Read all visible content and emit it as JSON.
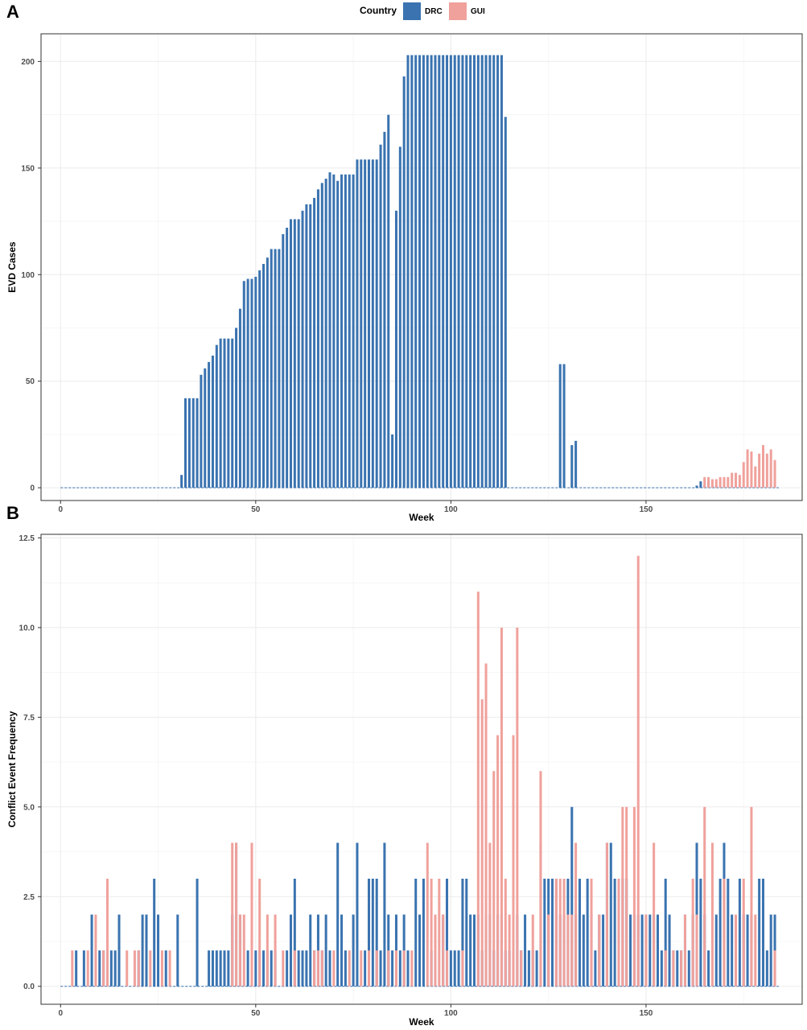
{
  "legend": {
    "title": "Country",
    "items": [
      {
        "label": "DRC",
        "color": "#3A73B0"
      },
      {
        "label": "GUI",
        "color": "#F0A19C"
      }
    ]
  },
  "chart_data": [
    {
      "panel_label": "A",
      "type": "bar",
      "xlabel": "Week",
      "ylabel": "EVD Cases",
      "xlim": [
        -5,
        190
      ],
      "ylim": [
        -6,
        213
      ],
      "x_ticks": [
        0,
        50,
        100,
        150
      ],
      "y_ticks": [
        0,
        50,
        100,
        150,
        200
      ],
      "y_tick_labels": [
        "0",
        "50",
        "100",
        "150",
        "200"
      ],
      "grid": true,
      "legend_position": "top",
      "series": [
        {
          "name": "DRC",
          "color": "#3A73B0",
          "weeks": [
            31,
            32,
            33,
            34,
            35,
            36,
            37,
            38,
            39,
            40,
            41,
            42,
            43,
            44,
            45,
            46,
            47,
            48,
            49,
            50,
            51,
            52,
            53,
            54,
            55,
            56,
            57,
            58,
            59,
            60,
            61,
            62,
            63,
            64,
            65,
            66,
            67,
            68,
            69,
            70,
            71,
            72,
            73,
            74,
            75,
            76,
            77,
            78,
            79,
            80,
            81,
            82,
            83,
            84,
            85,
            86,
            87,
            88,
            89,
            90,
            91,
            92,
            93,
            94,
            95,
            96,
            97,
            98,
            99,
            100,
            101,
            102,
            103,
            104,
            105,
            106,
            107,
            108,
            109,
            110,
            111,
            112,
            113,
            114,
            128,
            129,
            131,
            132,
            163,
            164,
            165,
            166,
            167,
            168
          ],
          "values": [
            6,
            42,
            42,
            42,
            42,
            53,
            56,
            59,
            62,
            67,
            70,
            70,
            70,
            70,
            75,
            84,
            97,
            98,
            98,
            99,
            102,
            105,
            108,
            112,
            112,
            112,
            119,
            122,
            126,
            126,
            126,
            130,
            133,
            133,
            136,
            140,
            143,
            145,
            148,
            147,
            144,
            147,
            147,
            147,
            147,
            154,
            154,
            154,
            154,
            154,
            154,
            161,
            167,
            175,
            25,
            130,
            160,
            193,
            203,
            203,
            203,
            203,
            203,
            203,
            203,
            203,
            203,
            203,
            203,
            203,
            203,
            203,
            203,
            203,
            203,
            203,
            203,
            203,
            203,
            203,
            203,
            203,
            203,
            174,
            58,
            58,
            20,
            22,
            1,
            3,
            1,
            3,
            1,
            1
          ]
        },
        {
          "name": "GUI",
          "color": "#F0A19C",
          "weeks": [
            165,
            166,
            167,
            168,
            169,
            170,
            171,
            172,
            173,
            174,
            175,
            176,
            177,
            178,
            179,
            180,
            181,
            182,
            183
          ],
          "values": [
            5,
            5,
            4,
            4,
            5,
            5,
            5,
            7,
            7,
            6,
            12,
            18,
            17,
            10,
            16,
            20,
            16,
            18,
            13
          ]
        }
      ]
    },
    {
      "panel_label": "B",
      "type": "bar",
      "xlabel": "Week",
      "ylabel": "Conflict Event Frequency",
      "xlim": [
        -5,
        190
      ],
      "ylim": [
        -0.5,
        12.6
      ],
      "x_ticks": [
        0,
        50,
        100,
        150
      ],
      "y_ticks": [
        0,
        2.5,
        5,
        7.5,
        10,
        12.5
      ],
      "y_tick_labels": [
        "0.0",
        "2.5",
        "5.0",
        "7.5",
        "10.0",
        "12.5"
      ],
      "grid": true,
      "series": [
        {
          "name": "DRC",
          "color": "#3A73B0",
          "weeks": [
            4,
            6,
            8,
            10,
            11,
            12,
            13,
            14,
            15,
            20,
            21,
            22,
            24,
            25,
            27,
            30,
            35,
            38,
            39,
            40,
            41,
            42,
            43,
            44,
            45,
            46,
            48,
            50,
            51,
            52,
            53,
            54,
            55,
            58,
            59,
            60,
            61,
            62,
            63,
            64,
            65,
            66,
            67,
            68,
            69,
            71,
            72,
            73,
            75,
            76,
            78,
            79,
            80,
            81,
            82,
            83,
            84,
            85,
            86,
            87,
            88,
            89,
            91,
            92,
            93,
            95,
            96,
            98,
            99,
            100,
            101,
            102,
            103,
            104,
            105,
            106,
            107,
            108,
            109,
            110,
            111,
            112,
            113,
            114,
            115,
            116,
            117,
            118,
            119,
            120,
            121,
            122,
            123,
            124,
            125,
            126,
            127,
            128,
            129,
            130,
            131,
            132,
            133,
            134,
            135,
            136,
            137,
            138,
            139,
            140,
            141,
            142,
            143,
            144,
            145,
            146,
            147,
            148,
            149,
            150,
            151,
            152,
            153,
            154,
            155,
            156,
            157,
            158,
            159,
            160,
            161,
            162,
            163,
            164,
            165,
            166,
            168,
            169,
            170,
            171,
            172,
            173,
            174,
            175,
            176,
            177,
            179,
            180,
            181,
            182,
            183
          ],
          "values": [
            1,
            1,
            2,
            1,
            1,
            1,
            1,
            1,
            2,
            1,
            2,
            2,
            3,
            2,
            1,
            2,
            3,
            1,
            1,
            1,
            1,
            1,
            1,
            2,
            4,
            2,
            1,
            1,
            1,
            1,
            1,
            1,
            1,
            1,
            2,
            3,
            1,
            1,
            1,
            2,
            1,
            2,
            1,
            2,
            1,
            4,
            2,
            1,
            2,
            4,
            1,
            3,
            3,
            3,
            1,
            4,
            2,
            1,
            2,
            1,
            2,
            1,
            3,
            2,
            3,
            1,
            1,
            2,
            3,
            1,
            1,
            1,
            3,
            3,
            2,
            2,
            2,
            1,
            2,
            2,
            1,
            2,
            2,
            1,
            1,
            1,
            2,
            1,
            2,
            1,
            1,
            1,
            4,
            3,
            3,
            3,
            3,
            2,
            2,
            3,
            5,
            2,
            3,
            2,
            3,
            2,
            1,
            2,
            2,
            4,
            4,
            3,
            2,
            3,
            3,
            2,
            2,
            2,
            2,
            2,
            2,
            2,
            2,
            1,
            3,
            2,
            1,
            1,
            1,
            2,
            1,
            2,
            4,
            3,
            2,
            1,
            2,
            3,
            4,
            3,
            2,
            1,
            3,
            2,
            2,
            2,
            3,
            3,
            1,
            2,
            2
          ]
        },
        {
          "name": "GUI",
          "color": "#F0A19C",
          "weeks": [
            3,
            7,
            9,
            11,
            12,
            17,
            19,
            20,
            23,
            26,
            28,
            44,
            45,
            46,
            47,
            49,
            51,
            53,
            55,
            57,
            60,
            65,
            66,
            67,
            70,
            74,
            77,
            79,
            81,
            84,
            86,
            88,
            90,
            94,
            95,
            96,
            97,
            98,
            99,
            103,
            107,
            108,
            109,
            110,
            111,
            112,
            113,
            114,
            115,
            116,
            117,
            118,
            121,
            123,
            125,
            127,
            128,
            129,
            130,
            131,
            132,
            136,
            138,
            140,
            143,
            144,
            145,
            147,
            148,
            150,
            152,
            155,
            157,
            159,
            160,
            162,
            163,
            165,
            167,
            170,
            173,
            175,
            177,
            178,
            183
          ],
          "values": [
            1,
            1,
            2,
            1,
            3,
            1,
            1,
            1,
            1,
            1,
            1,
            4,
            4,
            2,
            2,
            4,
            3,
            2,
            2,
            1,
            1,
            1,
            1,
            1,
            1,
            1,
            1,
            1,
            1,
            1,
            1,
            1,
            1,
            4,
            3,
            2,
            3,
            2,
            1,
            1,
            11,
            8,
            9,
            4,
            6,
            7,
            10,
            3,
            2,
            7,
            10,
            1,
            2,
            6,
            2,
            3,
            3,
            3,
            2,
            2,
            4,
            3,
            2,
            4,
            3,
            5,
            5,
            5,
            12,
            2,
            4,
            1,
            1,
            1,
            2,
            3,
            2,
            5,
            4,
            3,
            2,
            3,
            5,
            2,
            1
          ]
        }
      ]
    }
  ]
}
